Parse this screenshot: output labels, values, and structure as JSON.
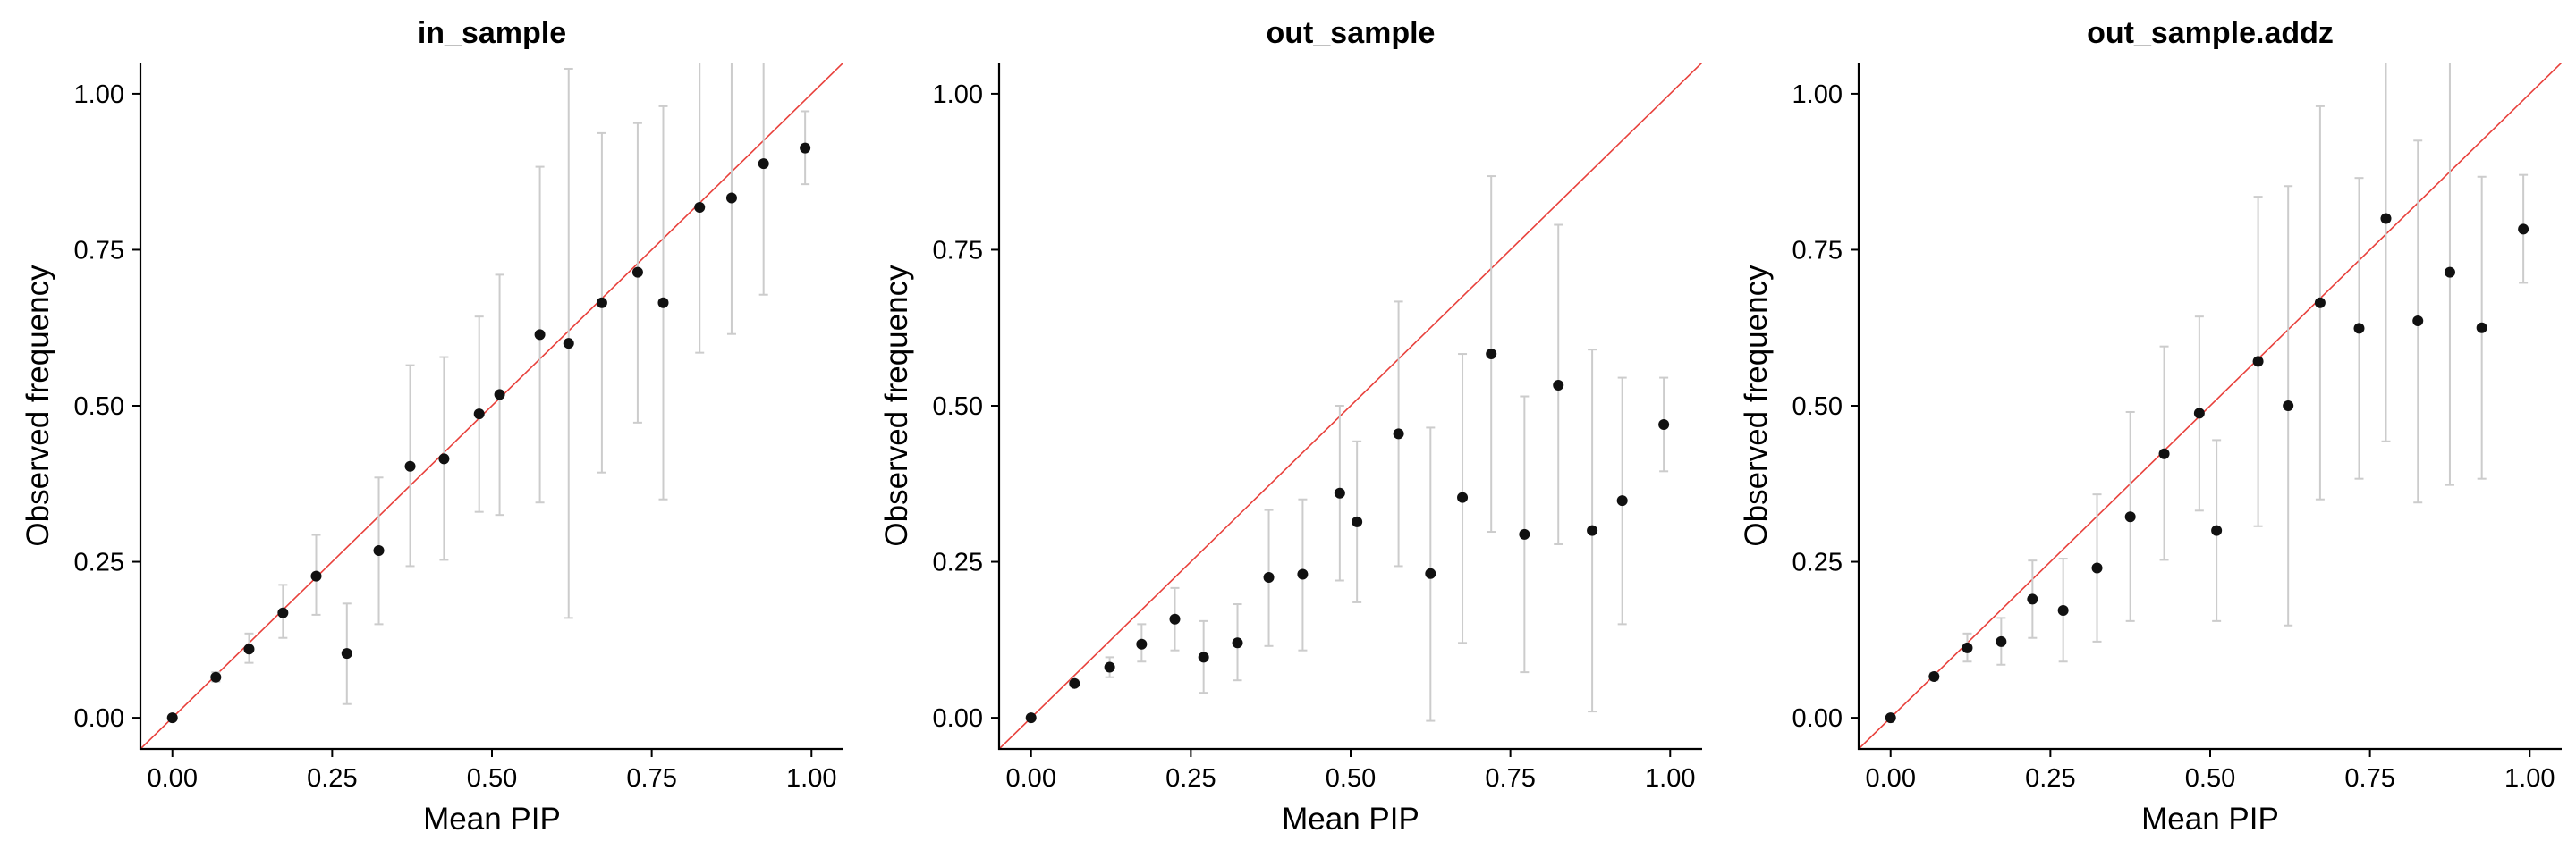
{
  "chart_data": [
    {
      "type": "scatter",
      "title": "in_sample",
      "xlabel": "Mean PIP",
      "ylabel": "Observed frequency",
      "xlim": [
        -0.05,
        1.05
      ],
      "ylim": [
        -0.05,
        1.05
      ],
      "xticks": [
        0,
        0.25,
        0.5,
        0.75,
        1
      ],
      "yticks": [
        0,
        0.25,
        0.5,
        0.75,
        1
      ],
      "tick_labels": [
        "0.00",
        "0.25",
        "0.50",
        "0.75",
        "1.00"
      ],
      "reference_line": "y = x",
      "grid": false,
      "points": [
        {
          "x": 0.0,
          "y": 0.0,
          "lo": 0.0,
          "hi": 0.0
        },
        {
          "x": 0.068,
          "y": 0.065,
          "lo": 0.058,
          "hi": 0.073
        },
        {
          "x": 0.12,
          "y": 0.11,
          "lo": 0.088,
          "hi": 0.135
        },
        {
          "x": 0.173,
          "y": 0.168,
          "lo": 0.128,
          "hi": 0.213
        },
        {
          "x": 0.225,
          "y": 0.227,
          "lo": 0.165,
          "hi": 0.293
        },
        {
          "x": 0.273,
          "y": 0.103,
          "lo": 0.022,
          "hi": 0.183
        },
        {
          "x": 0.323,
          "y": 0.268,
          "lo": 0.15,
          "hi": 0.385
        },
        {
          "x": 0.372,
          "y": 0.403,
          "lo": 0.243,
          "hi": 0.565
        },
        {
          "x": 0.425,
          "y": 0.415,
          "lo": 0.253,
          "hi": 0.578
        },
        {
          "x": 0.48,
          "y": 0.487,
          "lo": 0.33,
          "hi": 0.643
        },
        {
          "x": 0.512,
          "y": 0.518,
          "lo": 0.325,
          "hi": 0.71
        },
        {
          "x": 0.575,
          "y": 0.614,
          "lo": 0.345,
          "hi": 0.883
        },
        {
          "x": 0.62,
          "y": 0.6,
          "lo": 0.16,
          "hi": 1.04
        },
        {
          "x": 0.672,
          "y": 0.665,
          "lo": 0.393,
          "hi": 0.937
        },
        {
          "x": 0.728,
          "y": 0.714,
          "lo": 0.473,
          "hi": 0.953
        },
        {
          "x": 0.768,
          "y": 0.665,
          "lo": 0.35,
          "hi": 0.98
        },
        {
          "x": 0.825,
          "y": 0.818,
          "lo": 0.585,
          "hi": 1.05
        },
        {
          "x": 0.875,
          "y": 0.833,
          "lo": 0.615,
          "hi": 1.05
        },
        {
          "x": 0.925,
          "y": 0.888,
          "lo": 0.678,
          "hi": 1.05
        },
        {
          "x": 0.99,
          "y": 0.913,
          "lo": 0.855,
          "hi": 0.972
        }
      ]
    },
    {
      "type": "scatter",
      "title": "out_sample",
      "xlabel": "Mean PIP",
      "ylabel": "Observed frequency",
      "xlim": [
        -0.05,
        1.05
      ],
      "ylim": [
        -0.05,
        1.05
      ],
      "xticks": [
        0,
        0.25,
        0.5,
        0.75,
        1
      ],
      "yticks": [
        0,
        0.25,
        0.5,
        0.75,
        1
      ],
      "tick_labels": [
        "0.00",
        "0.25",
        "0.50",
        "0.75",
        "1.00"
      ],
      "reference_line": "y = x",
      "grid": false,
      "points": [
        {
          "x": 0.0,
          "y": 0.0,
          "lo": 0.0,
          "hi": 0.0
        },
        {
          "x": 0.068,
          "y": 0.055,
          "lo": 0.05,
          "hi": 0.06
        },
        {
          "x": 0.123,
          "y": 0.081,
          "lo": 0.065,
          "hi": 0.097
        },
        {
          "x": 0.173,
          "y": 0.118,
          "lo": 0.09,
          "hi": 0.15
        },
        {
          "x": 0.225,
          "y": 0.158,
          "lo": 0.108,
          "hi": 0.208
        },
        {
          "x": 0.27,
          "y": 0.097,
          "lo": 0.04,
          "hi": 0.155
        },
        {
          "x": 0.323,
          "y": 0.12,
          "lo": 0.06,
          "hi": 0.182
        },
        {
          "x": 0.372,
          "y": 0.225,
          "lo": 0.115,
          "hi": 0.333
        },
        {
          "x": 0.425,
          "y": 0.23,
          "lo": 0.108,
          "hi": 0.35
        },
        {
          "x": 0.483,
          "y": 0.36,
          "lo": 0.22,
          "hi": 0.5
        },
        {
          "x": 0.51,
          "y": 0.314,
          "lo": 0.185,
          "hi": 0.443
        },
        {
          "x": 0.575,
          "y": 0.455,
          "lo": 0.243,
          "hi": 0.667
        },
        {
          "x": 0.625,
          "y": 0.231,
          "lo": -0.005,
          "hi": 0.465
        },
        {
          "x": 0.675,
          "y": 0.353,
          "lo": 0.12,
          "hi": 0.583
        },
        {
          "x": 0.72,
          "y": 0.583,
          "lo": 0.298,
          "hi": 0.868
        },
        {
          "x": 0.772,
          "y": 0.294,
          "lo": 0.073,
          "hi": 0.515
        },
        {
          "x": 0.825,
          "y": 0.533,
          "lo": 0.278,
          "hi": 0.79
        },
        {
          "x": 0.878,
          "y": 0.3,
          "lo": 0.01,
          "hi": 0.59
        },
        {
          "x": 0.925,
          "y": 0.348,
          "lo": 0.15,
          "hi": 0.545
        },
        {
          "x": 0.99,
          "y": 0.47,
          "lo": 0.395,
          "hi": 0.545
        }
      ]
    },
    {
      "type": "scatter",
      "title": "out_sample.addz",
      "xlabel": "Mean PIP",
      "ylabel": "Observed frequency",
      "xlim": [
        -0.05,
        1.05
      ],
      "ylim": [
        -0.05,
        1.05
      ],
      "xticks": [
        0,
        0.25,
        0.5,
        0.75,
        1
      ],
      "yticks": [
        0,
        0.25,
        0.5,
        0.75,
        1
      ],
      "tick_labels": [
        "0.00",
        "0.25",
        "0.50",
        "0.75",
        "1.00"
      ],
      "reference_line": "y = x",
      "grid": false,
      "points": [
        {
          "x": 0.0,
          "y": 0.0,
          "lo": 0.0,
          "hi": 0.0
        },
        {
          "x": 0.068,
          "y": 0.066,
          "lo": 0.06,
          "hi": 0.072
        },
        {
          "x": 0.12,
          "y": 0.112,
          "lo": 0.09,
          "hi": 0.135
        },
        {
          "x": 0.173,
          "y": 0.122,
          "lo": 0.085,
          "hi": 0.16
        },
        {
          "x": 0.222,
          "y": 0.19,
          "lo": 0.128,
          "hi": 0.252
        },
        {
          "x": 0.27,
          "y": 0.172,
          "lo": 0.09,
          "hi": 0.255
        },
        {
          "x": 0.323,
          "y": 0.24,
          "lo": 0.122,
          "hi": 0.358
        },
        {
          "x": 0.375,
          "y": 0.322,
          "lo": 0.155,
          "hi": 0.49
        },
        {
          "x": 0.428,
          "y": 0.423,
          "lo": 0.253,
          "hi": 0.595
        },
        {
          "x": 0.483,
          "y": 0.488,
          "lo": 0.332,
          "hi": 0.643
        },
        {
          "x": 0.51,
          "y": 0.3,
          "lo": 0.155,
          "hi": 0.445
        },
        {
          "x": 0.575,
          "y": 0.571,
          "lo": 0.307,
          "hi": 0.835
        },
        {
          "x": 0.622,
          "y": 0.5,
          "lo": 0.148,
          "hi": 0.852
        },
        {
          "x": 0.672,
          "y": 0.665,
          "lo": 0.35,
          "hi": 0.98
        },
        {
          "x": 0.733,
          "y": 0.624,
          "lo": 0.383,
          "hi": 0.865
        },
        {
          "x": 0.775,
          "y": 0.8,
          "lo": 0.443,
          "hi": 1.05
        },
        {
          "x": 0.825,
          "y": 0.636,
          "lo": 0.345,
          "hi": 0.925
        },
        {
          "x": 0.875,
          "y": 0.714,
          "lo": 0.373,
          "hi": 1.05
        },
        {
          "x": 0.925,
          "y": 0.625,
          "lo": 0.383,
          "hi": 0.867
        },
        {
          "x": 0.99,
          "y": 0.783,
          "lo": 0.697,
          "hi": 0.87
        }
      ]
    }
  ],
  "colors": {
    "points": "#111111",
    "error_bars": "#cccccc",
    "reference_line": "#e8413c",
    "axes": "#000000"
  }
}
